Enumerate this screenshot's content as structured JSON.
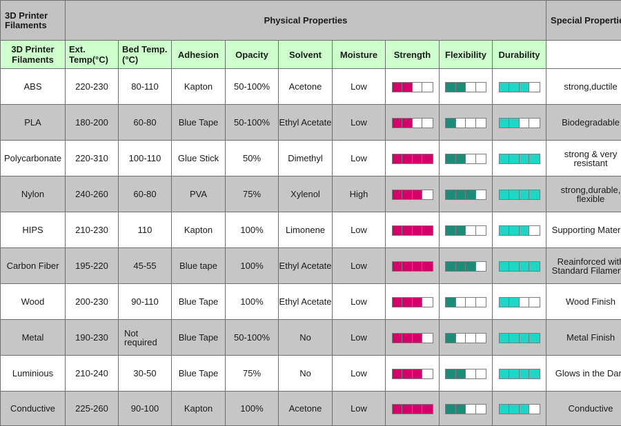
{
  "header": {
    "corner_title": "3D Printer Filaments",
    "group_title": "Physical Properties",
    "special_title": "Special Properties",
    "columns": {
      "filament": "3D Printer Filaments",
      "ext_temp": "Ext. Temp(°C)",
      "bed_temp": "Bed Temp.(°C)",
      "adhesion": "Adhesion",
      "opacity": "Opacity",
      "solvent": "Solvent",
      "moisture": "Moisture",
      "strength": "Strength",
      "flexibility": "Flexibility",
      "durability": "Durability"
    }
  },
  "colors": {
    "strength": "#d6006a",
    "flexibility": "#1a8c78",
    "durability": "#1dd6c6",
    "header_green": "#ccffcc",
    "row_grey": "#c6c6c6"
  },
  "rating_scale_max": 4,
  "rows": [
    {
      "name": "ABS",
      "ext": "220-230",
      "bed": "80-110",
      "adhesion": "Kapton",
      "opacity": "50-100%",
      "solvent": "Acetone",
      "moisture": "Low",
      "strength": 2,
      "flexibility": 2,
      "durability": 3,
      "special": "strong,ductile"
    },
    {
      "name": "PLA",
      "ext": "180-200",
      "bed": "60-80",
      "adhesion": "Blue Tape",
      "opacity": "50-100%",
      "solvent": "Ethyl Acetate",
      "moisture": "Low",
      "strength": 2,
      "flexibility": 1,
      "durability": 2,
      "special": "Biodegradable"
    },
    {
      "name": "Polycarbonate",
      "ext": "220-310",
      "bed": "100-110",
      "adhesion": "Glue Stick",
      "opacity": "50%",
      "solvent": "Dimethyl",
      "moisture": "Low",
      "strength": 4,
      "flexibility": 2,
      "durability": 4,
      "special": "strong & very resistant"
    },
    {
      "name": "Nylon",
      "ext": "240-260",
      "bed": "60-80",
      "adhesion": "PVA",
      "opacity": "75%",
      "solvent": "Xylenol",
      "moisture": "High",
      "strength": 3,
      "flexibility": 3,
      "durability": 4,
      "special": "strong,durable, flexible"
    },
    {
      "name": "HIPS",
      "ext": "210-230",
      "bed": "110",
      "adhesion": "Kapton",
      "opacity": "100%",
      "solvent": "Limonene",
      "moisture": "Low",
      "strength": 4,
      "flexibility": 2,
      "durability": 3,
      "special": "Supporting Material"
    },
    {
      "name": "Carbon Fiber",
      "ext": "195-220",
      "bed": "45-55",
      "adhesion": "Blue tape",
      "opacity": "100%",
      "solvent": "Ethyl Acetate",
      "moisture": "Low",
      "strength": 4,
      "flexibility": 3,
      "durability": 4,
      "special": "Reainforced with Standard Filaments"
    },
    {
      "name": "Wood",
      "ext": "200-230",
      "bed": "90-110",
      "adhesion": "Blue Tape",
      "opacity": "100%",
      "solvent": "Ethyl Acetate",
      "moisture": "Low",
      "strength": 3,
      "flexibility": 1,
      "durability": 2,
      "special": "Wood Finish"
    },
    {
      "name": "Metal",
      "ext": "190-230",
      "bed": "Not required",
      "adhesion": "Blue Tape",
      "opacity": "50-100%",
      "solvent": "No",
      "moisture": "Low",
      "strength": 3,
      "flexibility": 1,
      "durability": 4,
      "special": "Metal Finish"
    },
    {
      "name": "Luminious",
      "ext": "210-240",
      "bed": "30-50",
      "adhesion": "Blue Tape",
      "opacity": "75%",
      "solvent": "No",
      "moisture": "Low",
      "strength": 3,
      "flexibility": 2,
      "durability": 4,
      "special": "Glows in the Dark"
    },
    {
      "name": "Conductive",
      "ext": "225-260",
      "bed": "90-100",
      "adhesion": "Kapton",
      "opacity": "100%",
      "solvent": "Acetone",
      "moisture": "Low",
      "strength": 4,
      "flexibility": 2,
      "durability": 3,
      "special": "Conductive"
    }
  ]
}
